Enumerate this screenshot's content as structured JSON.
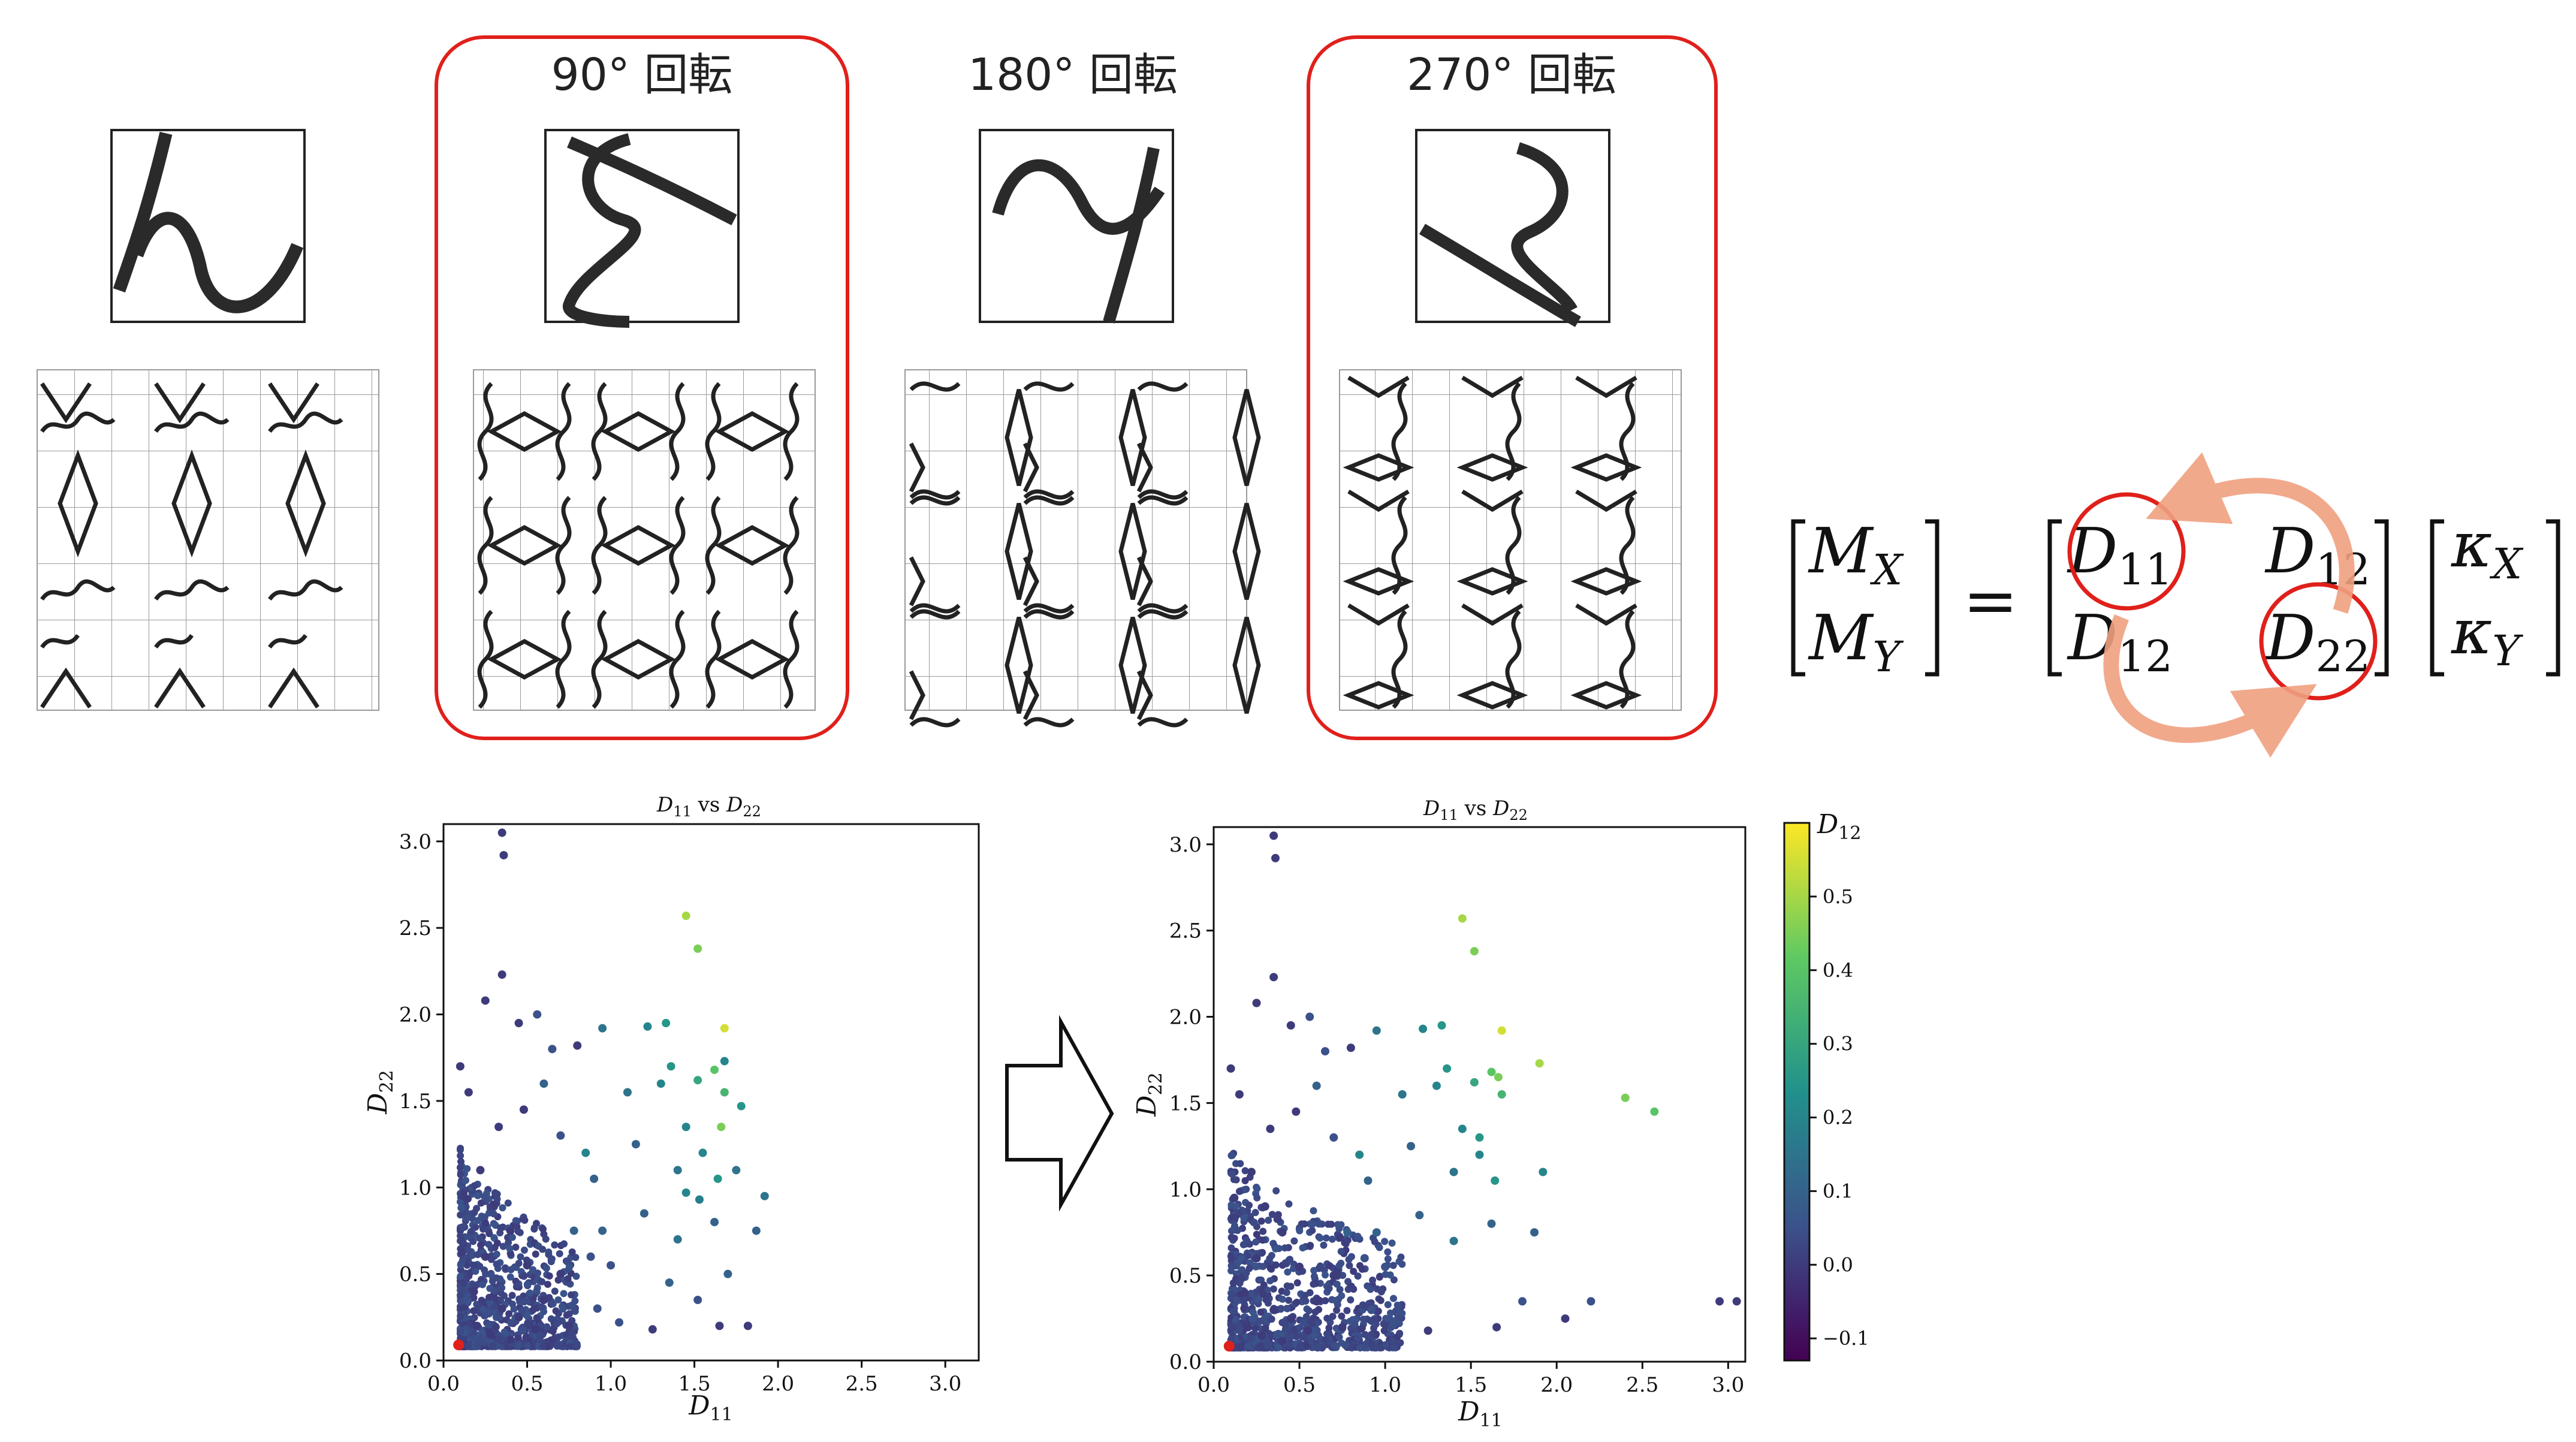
{
  "rotations": {
    "r0": {
      "label": ""
    },
    "r90": {
      "label": "90° 回転"
    },
    "r180": {
      "label": "180° 回転"
    },
    "r270": {
      "label": "270° 回転"
    }
  },
  "highlight_color": "#e0201b",
  "equation": {
    "lhs": [
      "M",
      "X",
      "M",
      "Y"
    ],
    "eq_sign": "=",
    "matrix": {
      "d11": {
        "base": "D",
        "sub": "11"
      },
      "d12a": {
        "base": "D",
        "sub": "12"
      },
      "d12b": {
        "base": "D",
        "sub": "12"
      },
      "d22": {
        "base": "D",
        "sub": "22"
      }
    },
    "rhs": {
      "k1": {
        "base": "κ",
        "sub": "X"
      },
      "k2": {
        "base": "κ",
        "sub": "Y"
      }
    },
    "swap_arrow_color": "#f0a080"
  },
  "arrow": {
    "icon": "right-arrow-icon"
  },
  "colorbar": {
    "label_base": "D",
    "label_sub": "12",
    "ticks": [
      "0.5",
      "0.4",
      "0.3",
      "0.2",
      "0.1",
      "0.0",
      "−0.1"
    ],
    "range": [
      -0.13,
      0.6
    ],
    "colormap": "viridis"
  },
  "chart_data": [
    {
      "type": "scatter",
      "title_base": "D",
      "title_sub": "11",
      "title_mid": " vs ",
      "title_base2": "D",
      "title_sub2": "22",
      "xlabel_base": "D",
      "xlabel_sub": "11",
      "ylabel_base": "D",
      "ylabel_sub": "22",
      "xlim": [
        0,
        3.2
      ],
      "ylim": [
        0,
        3.1
      ],
      "xticks": [
        "0.0",
        "0.5",
        "1.0",
        "1.5",
        "2.0",
        "2.5",
        "3.0"
      ],
      "yticks": [
        "0.0",
        "0.5",
        "1.0",
        "1.5",
        "2.0",
        "2.5",
        "3.0"
      ],
      "highlight_point": {
        "x": 0.09,
        "y": 0.09,
        "color": "#e0201b"
      },
      "points": [
        [
          0.35,
          3.05,
          0.0
        ],
        [
          0.36,
          2.92,
          0.0
        ],
        [
          1.45,
          2.57,
          0.5
        ],
        [
          1.52,
          2.38,
          0.45
        ],
        [
          0.35,
          2.23,
          0.0
        ],
        [
          0.25,
          2.08,
          0.0
        ],
        [
          1.68,
          1.92,
          0.55
        ],
        [
          1.62,
          1.68,
          0.4
        ],
        [
          1.68,
          1.73,
          0.2
        ],
        [
          1.52,
          1.62,
          0.3
        ],
        [
          1.68,
          1.55,
          0.35
        ],
        [
          1.66,
          1.35,
          0.45
        ],
        [
          1.78,
          1.47,
          0.25
        ],
        [
          1.45,
          1.35,
          0.2
        ],
        [
          0.95,
          1.92,
          0.15
        ],
        [
          1.22,
          1.93,
          0.2
        ],
        [
          1.33,
          1.95,
          0.25
        ],
        [
          1.36,
          1.7,
          0.25
        ],
        [
          1.55,
          1.2,
          0.2
        ],
        [
          1.64,
          1.05,
          0.25
        ],
        [
          1.4,
          1.1,
          0.15
        ],
        [
          1.45,
          0.97,
          0.2
        ],
        [
          1.53,
          0.93,
          0.18
        ],
        [
          1.92,
          0.95,
          0.15
        ],
        [
          1.87,
          0.75,
          0.1
        ],
        [
          1.62,
          0.8,
          0.1
        ],
        [
          1.4,
          0.7,
          0.15
        ],
        [
          1.35,
          0.45,
          0.1
        ],
        [
          1.7,
          0.5,
          0.1
        ],
        [
          1.52,
          0.35,
          0.05
        ],
        [
          1.82,
          0.2,
          0.0
        ],
        [
          1.65,
          0.2,
          0.0
        ],
        [
          1.25,
          0.18,
          0.0
        ],
        [
          1.05,
          0.22,
          0.05
        ],
        [
          0.92,
          0.3,
          0.05
        ],
        [
          0.85,
          1.2,
          0.2
        ],
        [
          0.9,
          1.05,
          0.1
        ],
        [
          0.78,
          0.75,
          0.1
        ],
        [
          0.95,
          0.75,
          0.1
        ],
        [
          0.6,
          1.6,
          0.1
        ],
        [
          0.65,
          1.8,
          0.05
        ],
        [
          0.45,
          1.95,
          0.0
        ],
        [
          0.56,
          2.0,
          0.05
        ],
        [
          0.8,
          1.82,
          0.0
        ],
        [
          0.1,
          1.7,
          0.0
        ],
        [
          0.15,
          1.55,
          0.0
        ],
        [
          0.22,
          1.1,
          0.0
        ],
        [
          0.3,
          0.9,
          0.0
        ],
        [
          0.4,
          0.75,
          0.0
        ],
        [
          0.25,
          0.6,
          0.0
        ],
        [
          0.5,
          0.55,
          0.0
        ],
        [
          0.6,
          0.35,
          0.0
        ],
        [
          0.18,
          0.4,
          0.0
        ],
        [
          0.35,
          0.3,
          0.0
        ],
        [
          0.45,
          0.25,
          0.0
        ],
        [
          0.2,
          0.2,
          0.0
        ],
        [
          0.28,
          0.15,
          0.0
        ],
        [
          0.4,
          0.12,
          0.0
        ],
        [
          0.55,
          0.18,
          0.0
        ],
        [
          0.7,
          0.5,
          0.0
        ],
        [
          0.75,
          0.2,
          0.0
        ],
        [
          0.12,
          0.95,
          0.0
        ],
        [
          0.33,
          1.35,
          0.0
        ],
        [
          0.48,
          1.45,
          0.0
        ],
        [
          0.7,
          1.3,
          0.05
        ],
        [
          1.1,
          1.55,
          0.15
        ],
        [
          1.15,
          1.25,
          0.1
        ],
        [
          1.2,
          0.85,
          0.1
        ],
        [
          1.0,
          0.55,
          0.05
        ],
        [
          0.88,
          0.6,
          0.05
        ],
        [
          1.75,
          1.1,
          0.15
        ],
        [
          1.3,
          1.6,
          0.2
        ]
      ]
    },
    {
      "type": "scatter",
      "title_base": "D",
      "title_sub": "11",
      "title_mid": " vs ",
      "title_base2": "D",
      "title_sub2": "22",
      "xlabel_base": "D",
      "xlabel_sub": "11",
      "ylabel_base": "D",
      "ylabel_sub": "22",
      "xlim": [
        0,
        3.1
      ],
      "ylim": [
        0,
        3.1
      ],
      "xticks": [
        "0.0",
        "0.5",
        "1.0",
        "1.5",
        "2.0",
        "2.5",
        "3.0"
      ],
      "yticks": [
        "0.0",
        "0.5",
        "1.0",
        "1.5",
        "2.0",
        "2.5",
        "3.0"
      ],
      "highlight_point": {
        "x": 0.09,
        "y": 0.09,
        "color": "#e0201b"
      },
      "points": [
        [
          0.35,
          3.05,
          0.0
        ],
        [
          0.36,
          2.92,
          0.0
        ],
        [
          1.45,
          2.57,
          0.5
        ],
        [
          1.52,
          2.38,
          0.45
        ],
        [
          0.35,
          2.23,
          0.0
        ],
        [
          0.25,
          2.08,
          0.0
        ],
        [
          1.68,
          1.92,
          0.55
        ],
        [
          1.62,
          1.68,
          0.4
        ],
        [
          1.66,
          1.65,
          0.45
        ],
        [
          1.9,
          1.73,
          0.5
        ],
        [
          2.4,
          1.53,
          0.45
        ],
        [
          2.57,
          1.45,
          0.4
        ],
        [
          1.52,
          1.62,
          0.3
        ],
        [
          1.68,
          1.55,
          0.35
        ],
        [
          1.45,
          1.35,
          0.2
        ],
        [
          0.95,
          1.92,
          0.15
        ],
        [
          1.22,
          1.93,
          0.2
        ],
        [
          1.33,
          1.95,
          0.25
        ],
        [
          1.36,
          1.7,
          0.25
        ],
        [
          1.55,
          1.2,
          0.2
        ],
        [
          1.64,
          1.05,
          0.25
        ],
        [
          1.4,
          1.1,
          0.15
        ],
        [
          1.92,
          1.1,
          0.2
        ],
        [
          1.87,
          0.75,
          0.1
        ],
        [
          1.62,
          0.8,
          0.1
        ],
        [
          1.4,
          0.7,
          0.15
        ],
        [
          2.2,
          0.35,
          0.05
        ],
        [
          2.05,
          0.25,
          0.0
        ],
        [
          2.95,
          0.35,
          0.0
        ],
        [
          3.05,
          0.35,
          0.0
        ],
        [
          1.8,
          0.35,
          0.05
        ],
        [
          1.65,
          0.2,
          0.0
        ],
        [
          1.25,
          0.18,
          0.0
        ],
        [
          1.05,
          0.22,
          0.05
        ],
        [
          0.92,
          0.3,
          0.05
        ],
        [
          0.85,
          1.2,
          0.2
        ],
        [
          0.9,
          1.05,
          0.1
        ],
        [
          0.78,
          0.75,
          0.1
        ],
        [
          0.95,
          0.75,
          0.1
        ],
        [
          0.6,
          1.6,
          0.1
        ],
        [
          0.65,
          1.8,
          0.05
        ],
        [
          0.45,
          1.95,
          0.0
        ],
        [
          0.56,
          2.0,
          0.05
        ],
        [
          0.8,
          1.82,
          0.0
        ],
        [
          0.1,
          1.7,
          0.0
        ],
        [
          0.15,
          1.55,
          0.0
        ],
        [
          0.22,
          1.1,
          0.0
        ],
        [
          0.3,
          0.9,
          0.0
        ],
        [
          0.4,
          0.75,
          0.0
        ],
        [
          0.25,
          0.6,
          0.0
        ],
        [
          0.5,
          0.55,
          0.0
        ],
        [
          0.6,
          0.35,
          0.0
        ],
        [
          0.18,
          0.4,
          0.0
        ],
        [
          0.35,
          0.3,
          0.0
        ],
        [
          0.45,
          0.25,
          0.0
        ],
        [
          0.2,
          0.2,
          0.0
        ],
        [
          0.28,
          0.15,
          0.0
        ],
        [
          0.4,
          0.12,
          0.0
        ],
        [
          0.55,
          0.18,
          0.0
        ],
        [
          0.7,
          0.5,
          0.0
        ],
        [
          0.75,
          0.2,
          0.0
        ],
        [
          0.12,
          0.95,
          0.0
        ],
        [
          0.33,
          1.35,
          0.0
        ],
        [
          0.48,
          1.45,
          0.0
        ],
        [
          0.7,
          1.3,
          0.05
        ],
        [
          1.1,
          1.55,
          0.15
        ],
        [
          1.15,
          1.25,
          0.1
        ],
        [
          1.2,
          0.85,
          0.1
        ],
        [
          1.0,
          0.55,
          0.05
        ],
        [
          0.88,
          0.6,
          0.05
        ],
        [
          1.3,
          1.6,
          0.2
        ],
        [
          1.55,
          1.3,
          0.25
        ]
      ]
    }
  ]
}
